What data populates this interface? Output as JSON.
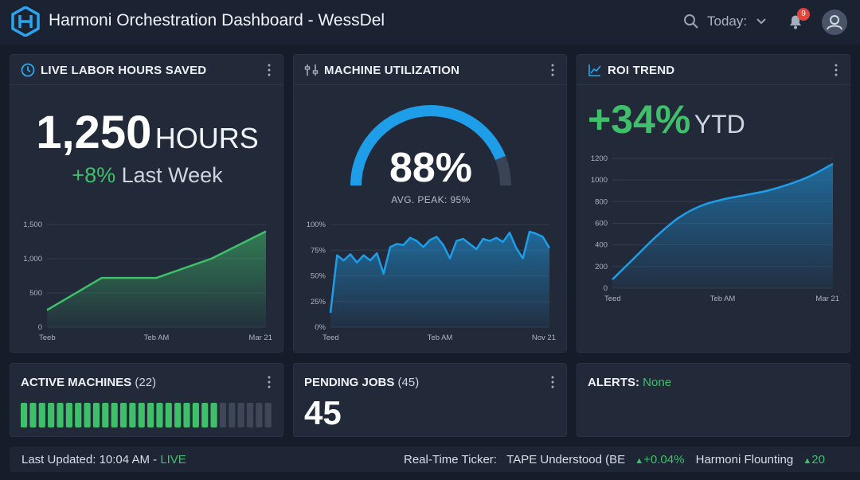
{
  "header": {
    "title": "Harmoni Orchestration Dashboard - WessDel",
    "date_filter": "Today:",
    "notification_count": "9",
    "icons": [
      "logo-icon",
      "search-icon",
      "chevron-down-icon",
      "bell-icon",
      "user-icon"
    ]
  },
  "colors": {
    "accent_green": "#3fbf69",
    "accent_blue": "#1e9de8",
    "background": "#151c2a",
    "card": "#222a3a"
  },
  "labor": {
    "title": "LIVE LABOR HOURS SAVED",
    "value": "1,250",
    "unit": "HOURS",
    "delta": "+8%",
    "delta_label": "Last Week"
  },
  "utilization": {
    "title": "MACHINE UTILIZATION",
    "value": "88%",
    "gauge_fraction": 0.88,
    "peak_label": "AVG. PEAK: 95%"
  },
  "roi": {
    "title": "ROI TREND",
    "value": "+34%",
    "suffix": "YTD"
  },
  "active": {
    "title": "ACTIVE MACHINES",
    "count": "(22)",
    "active_segments": 22,
    "total_segments": 28
  },
  "pending": {
    "title": "PENDING JOBS",
    "count": "(45)",
    "value": "45"
  },
  "alerts": {
    "title": "ALERTS:",
    "status": "None"
  },
  "footer": {
    "updated_label": "Last Updated: 10:04 AM -",
    "live": "LIVE",
    "ticker_label": "Real-Time Ticker:",
    "ticker_item1_name": "TAPE Understood (BE",
    "ticker_item1_change": "+0.04%",
    "ticker_item2_name": "Harmoni Flounting",
    "ticker_item2_change": "20"
  },
  "chart_data": [
    {
      "type": "area",
      "name": "labor-hours-chart",
      "x_ticks": [
        "Teeb",
        "Teb AM",
        "Mar 21"
      ],
      "y_ticks": [
        "0",
        "500",
        "1,000",
        "1,500"
      ],
      "ylim": [
        0,
        1500
      ],
      "x": [
        0,
        1,
        2,
        3,
        4
      ],
      "values": [
        250,
        720,
        720,
        1000,
        1400
      ],
      "color": "#3fbf69"
    },
    {
      "type": "area",
      "name": "utilization-chart",
      "x_ticks": [
        "Teed",
        "Teb AM",
        "Nov 21"
      ],
      "y_ticks": [
        "0%",
        "25%",
        "50%",
        "75%",
        "100%"
      ],
      "ylim": [
        0,
        100
      ],
      "values": [
        14,
        70,
        65,
        71,
        63,
        70,
        65,
        72,
        52,
        78,
        81,
        80,
        87,
        84,
        78,
        85,
        88,
        80,
        67,
        84,
        86,
        81,
        76,
        86,
        84,
        87,
        83,
        92,
        77,
        67,
        93,
        91,
        88,
        77
      ],
      "color": "#1e9de8"
    },
    {
      "type": "area",
      "name": "roi-trend-chart",
      "x_ticks": [
        "Teed",
        "Teb AM",
        "Mar 21"
      ],
      "y_ticks": [
        "0",
        "200",
        "400",
        "600",
        "800",
        "1000",
        "1200"
      ],
      "ylim": [
        0,
        1200
      ],
      "values": [
        80,
        280,
        480,
        650,
        760,
        820,
        860,
        900,
        960,
        1040,
        1150
      ],
      "color": "#1e9de8"
    }
  ]
}
